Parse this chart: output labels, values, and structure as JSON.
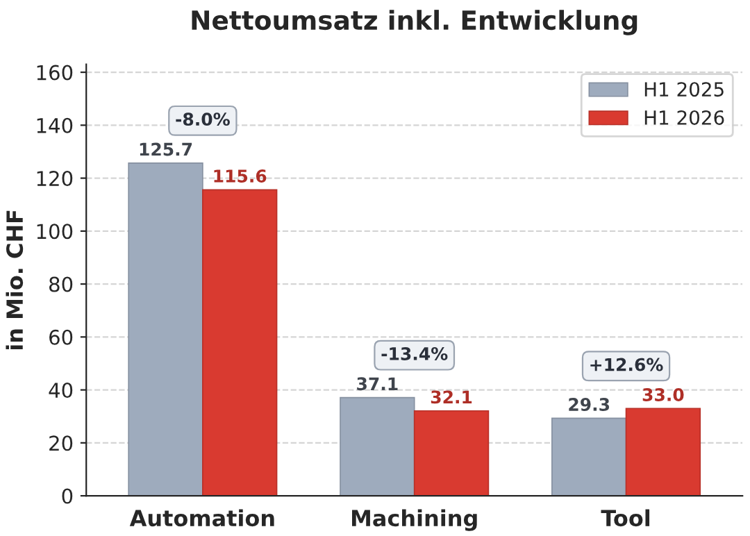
{
  "chart_data": {
    "type": "bar",
    "title": "Nettoumsatz inkl. Entwicklung",
    "ylabel": "in Mio. CHF",
    "categories": [
      "Automation",
      "Machining",
      "Tool"
    ],
    "series": [
      {
        "name": "H1 2025",
        "color": "#9eabbd",
        "values": [
          125.7,
          37.1,
          29.3
        ],
        "value_labels": [
          "125.7",
          "37.1",
          "29.3"
        ]
      },
      {
        "name": "H1 2026",
        "color": "#d93a30",
        "values": [
          115.6,
          32.1,
          33.0
        ],
        "value_labels": [
          "115.6",
          "32.1",
          "33.0"
        ]
      }
    ],
    "ylim": [
      0,
      163
    ],
    "yticks": [
      0,
      20,
      40,
      60,
      80,
      100,
      120,
      140,
      160
    ],
    "grid": "y",
    "legend": "top right",
    "annotations": [
      "-8.0%",
      "-13.4%",
      "+12.6%"
    ]
  }
}
